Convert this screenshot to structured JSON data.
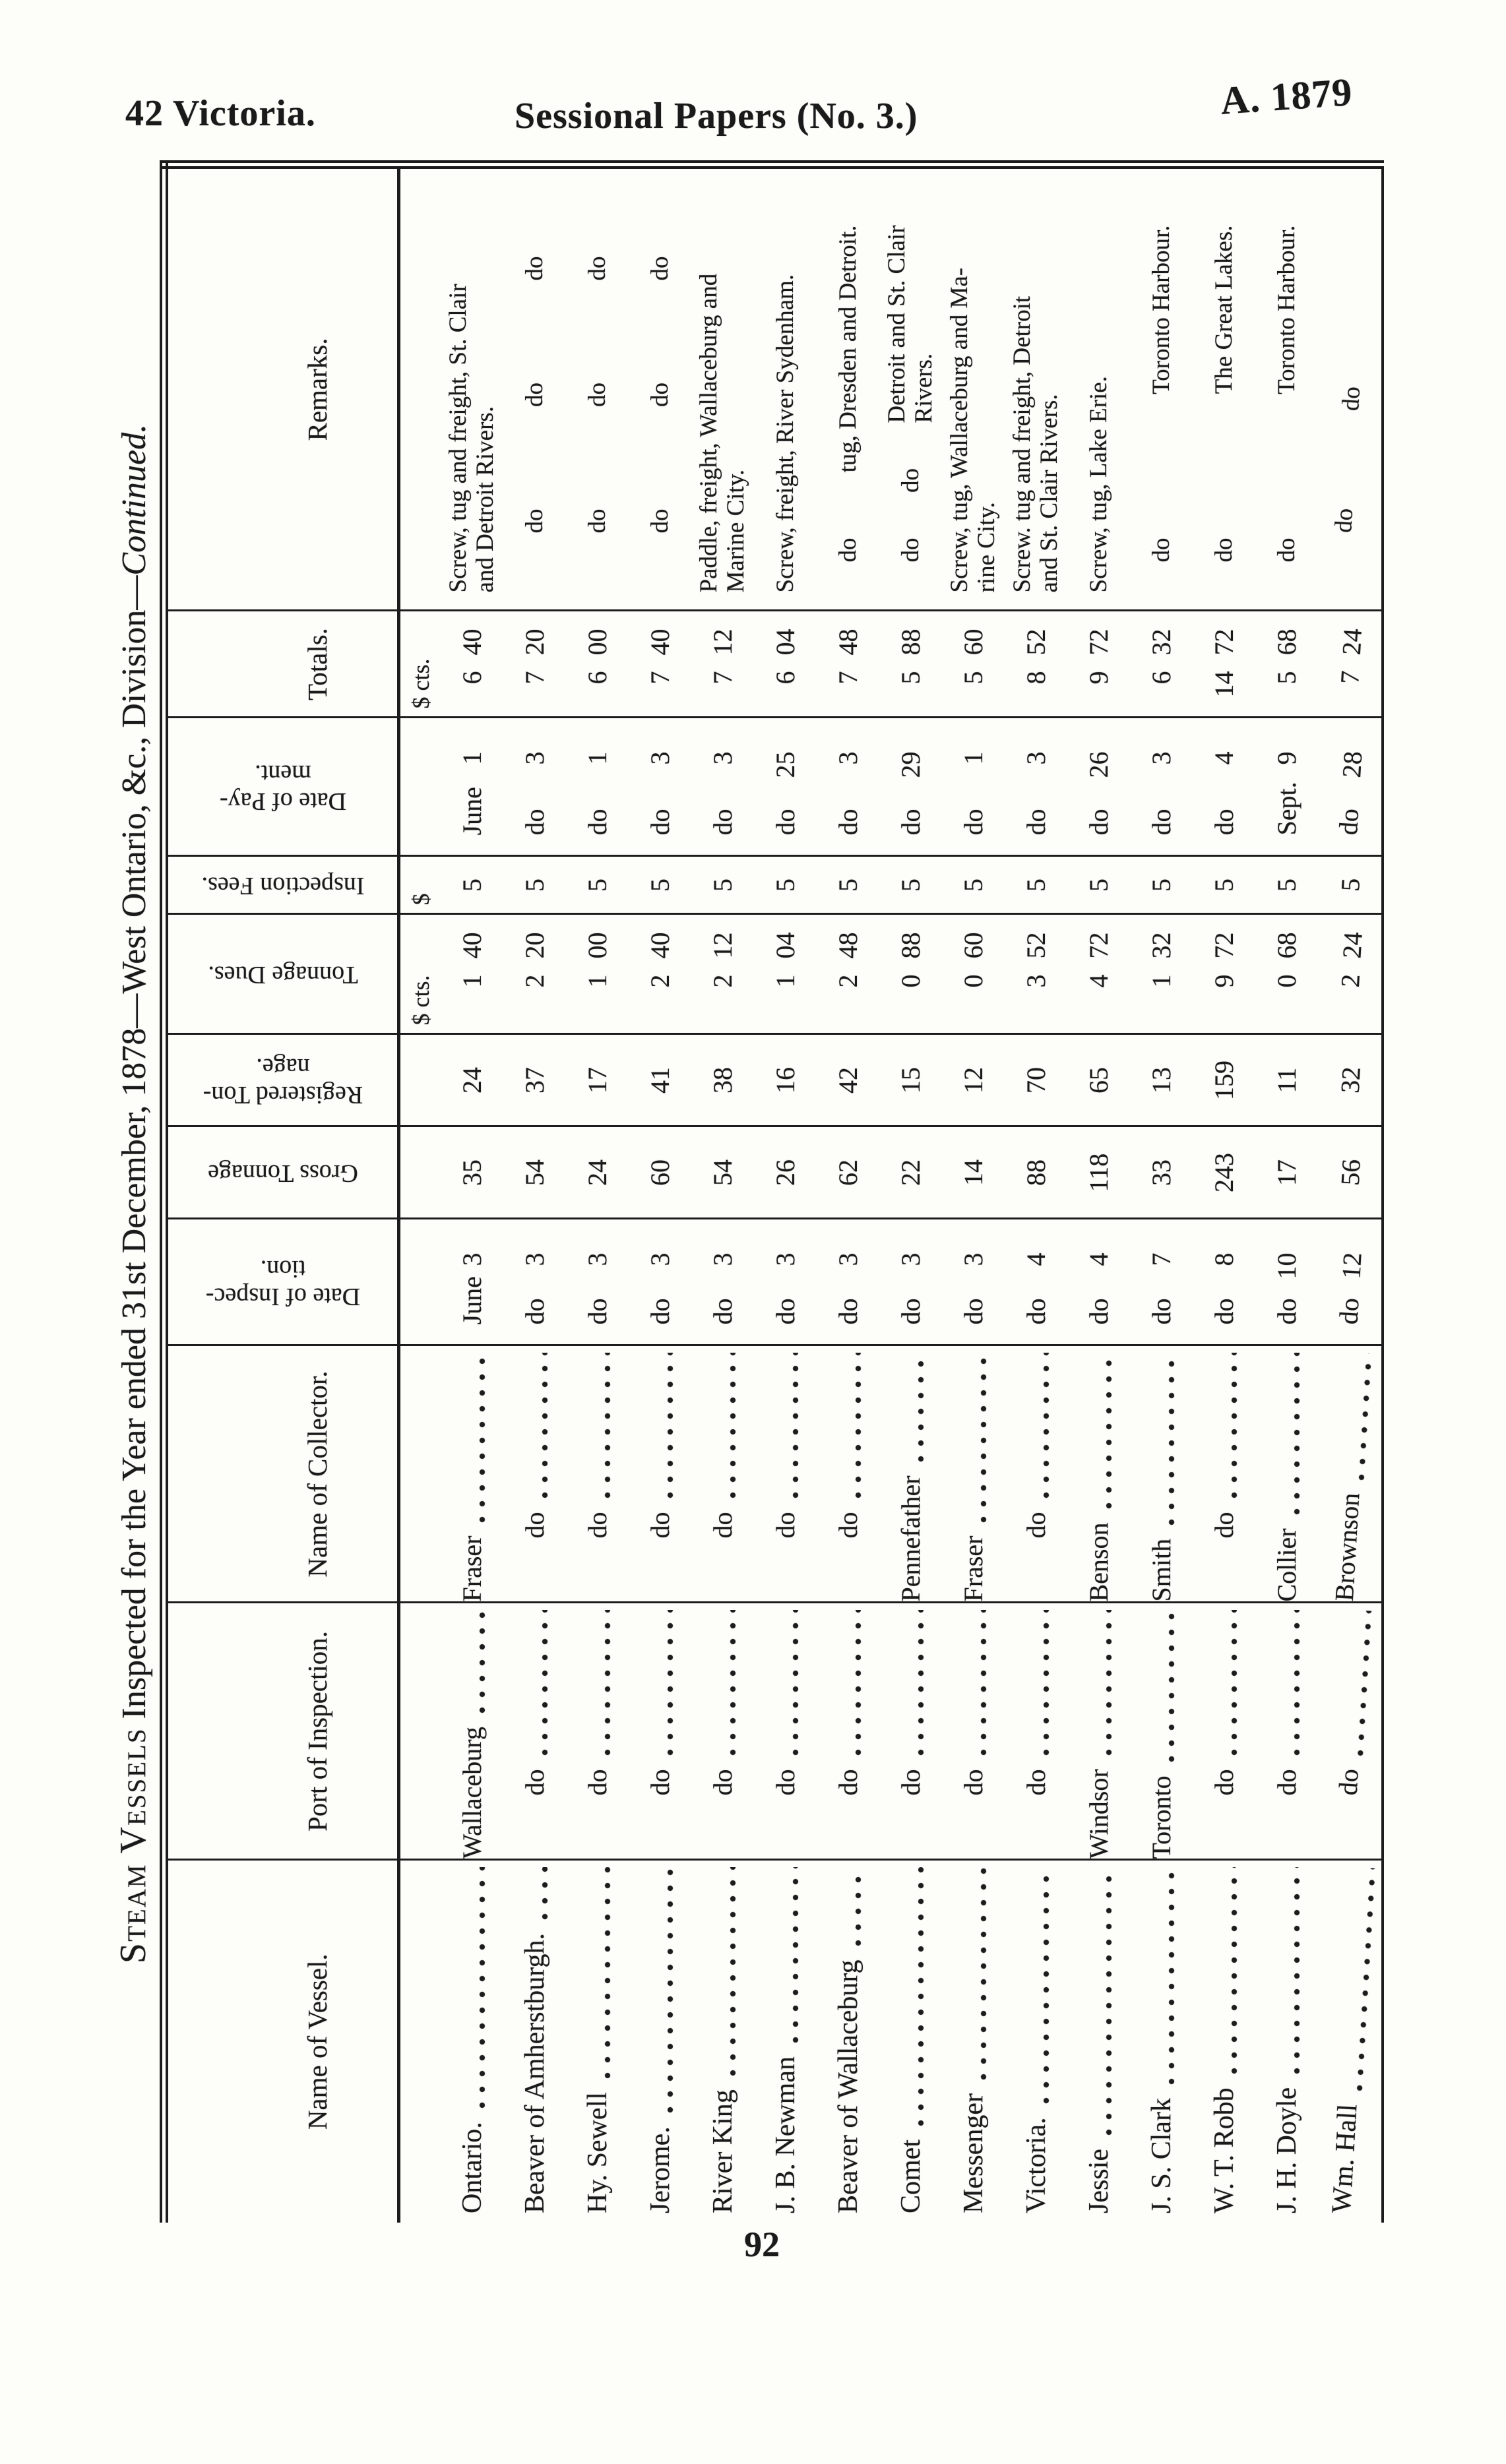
{
  "page_header": {
    "left": "42 Victoria.",
    "center": "Sessional Papers (No. 3.)",
    "right": "A. 1879"
  },
  "page_number": "92",
  "caption": {
    "lead": "Steam Vessels",
    "body": " Inspected for the Year ended 31st December, 1878—West Ontario, &c., Division—",
    "tail": "Continued."
  },
  "columns": {
    "vessel": "Name of Vessel.",
    "port": "Port of Inspection.",
    "collector": "Name of Collector.",
    "date_inspection": "Date of Inspec-\ntion.",
    "gross_tonnage": "Gross Tonnage",
    "registered_tonnage": "Registered Ton-\nnage.",
    "tonnage_dues": "Tonnage Dues.",
    "inspection_fees": "Inspection Fees.",
    "date_payment": "Date of Pay-\nment.",
    "totals": "Totals.",
    "remarks": "Remarks."
  },
  "units": {
    "tonnage_dues": "$ cts.",
    "inspection_fees": "$",
    "totals": "$ cts."
  },
  "rows": [
    {
      "vessel": "Ontario.",
      "port": "Wallaceburg",
      "collector": "Fraser",
      "insp_month": "June",
      "insp_day": "3",
      "gross": "35",
      "registered": "24",
      "dues_d": "1",
      "dues_c": "40",
      "fee": "5",
      "pay_month": "June",
      "pay_day": "1",
      "total_d": "6",
      "total_c": "40",
      "remark_layout": "plain",
      "remark": "Screw, tug and freight, St. Clair\nand Detroit Rivers."
    },
    {
      "vessel": "Beaver of Amherstburgh.",
      "port": "do",
      "collector": "do",
      "insp_month": "do",
      "insp_day": "3",
      "gross": "54",
      "registered": "37",
      "dues_d": "2",
      "dues_c": "20",
      "fee": "5",
      "pay_month": "do",
      "pay_day": "3",
      "total_d": "7",
      "total_c": "20",
      "remark_layout": "spread3",
      "remark": "do do do"
    },
    {
      "vessel": "Hy. Sewell",
      "port": "do",
      "collector": "do",
      "insp_month": "do",
      "insp_day": "3",
      "gross": "24",
      "registered": "17",
      "dues_d": "1",
      "dues_c": "00",
      "fee": "5",
      "pay_month": "do",
      "pay_day": "1",
      "total_d": "6",
      "total_c": "00",
      "remark_layout": "spread3",
      "remark": "do do do"
    },
    {
      "vessel": "Jerome.",
      "port": "do",
      "collector": "do",
      "insp_month": "do",
      "insp_day": "3",
      "gross": "60",
      "registered": "41",
      "dues_d": "2",
      "dues_c": "40",
      "fee": "5",
      "pay_month": "do",
      "pay_day": "3",
      "total_d": "7",
      "total_c": "40",
      "remark_layout": "spread3",
      "remark": "do do do"
    },
    {
      "vessel": "River King",
      "port": "do",
      "collector": "do",
      "insp_month": "do",
      "insp_day": "3",
      "gross": "54",
      "registered": "38",
      "dues_d": "2",
      "dues_c": "12",
      "fee": "5",
      "pay_month": "do",
      "pay_day": "3",
      "total_d": "7",
      "total_c": "12",
      "remark_layout": "plain",
      "remark": "Paddle, freight, Wallaceburg and\nMarine City."
    },
    {
      "vessel": "J. B. Newman",
      "port": "do",
      "collector": "do",
      "insp_month": "do",
      "insp_day": "3",
      "gross": "26",
      "registered": "16",
      "dues_d": "1",
      "dues_c": "04",
      "fee": "5",
      "pay_month": "do",
      "pay_day": "25",
      "total_d": "6",
      "total_c": "04",
      "remark_layout": "plain",
      "remark": "Screw, freight, River Sydenham."
    },
    {
      "vessel": "Beaver of Wallaceburg",
      "port": "do",
      "collector": "do",
      "insp_month": "do",
      "insp_day": "3",
      "gross": "62",
      "registered": "42",
      "dues_d": "2",
      "dues_c": "48",
      "fee": "5",
      "pay_month": "do",
      "pay_day": "3",
      "total_d": "7",
      "total_c": "48",
      "remark_layout": "dotext",
      "remark_lead": "do",
      "remark": "tug, Dresden and Detroit."
    },
    {
      "vessel": "Comet",
      "port": "do",
      "collector": "Pennefather",
      "insp_month": "do",
      "insp_day": "3",
      "gross": "22",
      "registered": "15",
      "dues_d": "0",
      "dues_c": "88",
      "fee": "5",
      "pay_month": "do",
      "pay_day": "29",
      "total_d": "5",
      "total_c": "88",
      "remark_layout": "dodotext",
      "remark_lead": "do",
      "remark_lead2": "do",
      "remark": "Detroit and St. Clair\nRivers."
    },
    {
      "vessel": "Messenger",
      "port": "do",
      "collector": "Fraser",
      "insp_month": "do",
      "insp_day": "3",
      "gross": "14",
      "registered": "12",
      "dues_d": "0",
      "dues_c": "60",
      "fee": "5",
      "pay_month": "do",
      "pay_day": "1",
      "total_d": "5",
      "total_c": "60",
      "remark_layout": "plain",
      "remark": "Screw, tug, Wallaceburg and Ma-\nrine City."
    },
    {
      "vessel": "Victoria.",
      "port": "do",
      "collector": "do",
      "insp_month": "do",
      "insp_day": "4",
      "gross": "88",
      "registered": "70",
      "dues_d": "3",
      "dues_c": "52",
      "fee": "5",
      "pay_month": "do",
      "pay_day": "3",
      "total_d": "8",
      "total_c": "52",
      "remark_layout": "plain",
      "remark": "Screw. tug and freight, Detroit\nand St. Clair Rivers."
    },
    {
      "vessel": "Jessie",
      "port": "Windsor",
      "collector": "Benson",
      "insp_month": "do",
      "insp_day": "4",
      "gross": "118",
      "registered": "65",
      "dues_d": "4",
      "dues_c": "72",
      "fee": "5",
      "pay_month": "do",
      "pay_day": "26",
      "total_d": "9",
      "total_c": "72",
      "remark_layout": "plain",
      "remark": "Screw, tug, Lake Erie."
    },
    {
      "vessel": "J. S. Clark",
      "port": "Toronto",
      "collector": "Smith",
      "insp_month": "do",
      "insp_day": "7",
      "gross": "33",
      "registered": "13",
      "dues_d": "1",
      "dues_c": "32",
      "fee": "5",
      "pay_month": "do",
      "pay_day": "3",
      "total_d": "6",
      "total_c": "32",
      "remark_layout": "dotext",
      "remark_lead": "do",
      "remark": "Toronto Harbour."
    },
    {
      "vessel": "W. T. Robb",
      "port": "do",
      "collector": "do",
      "insp_month": "do",
      "insp_day": "8",
      "gross": "243",
      "registered": "159",
      "dues_d": "9",
      "dues_c": "72",
      "fee": "5",
      "pay_month": "do",
      "pay_day": "4",
      "total_d": "14",
      "total_c": "72",
      "remark_layout": "dotext",
      "remark_lead": "do",
      "remark": "The Great Lakes."
    },
    {
      "vessel": "J. H. Doyle",
      "port": "do",
      "collector": "Collier",
      "insp_month": "do",
      "insp_day": "10",
      "gross": "17",
      "registered": "11",
      "dues_d": "0",
      "dues_c": "68",
      "fee": "5",
      "pay_month": "Sept.",
      "pay_day": "9",
      "total_d": "5",
      "total_c": "68",
      "remark_layout": "dotext",
      "remark_lead": "do",
      "remark": "Toronto Harbour."
    },
    {
      "vessel": "Wm. Hall",
      "port": "do",
      "collector": "Brownson",
      "insp_month": "do",
      "insp_day": "12",
      "gross": "56",
      "registered": "32",
      "dues_d": "2",
      "dues_c": "24",
      "fee": "5",
      "pay_month": "do",
      "pay_day": "28",
      "total_d": "7",
      "total_c": "24",
      "remark_layout": "spread2",
      "remark": "do do",
      "curl": true
    }
  ]
}
